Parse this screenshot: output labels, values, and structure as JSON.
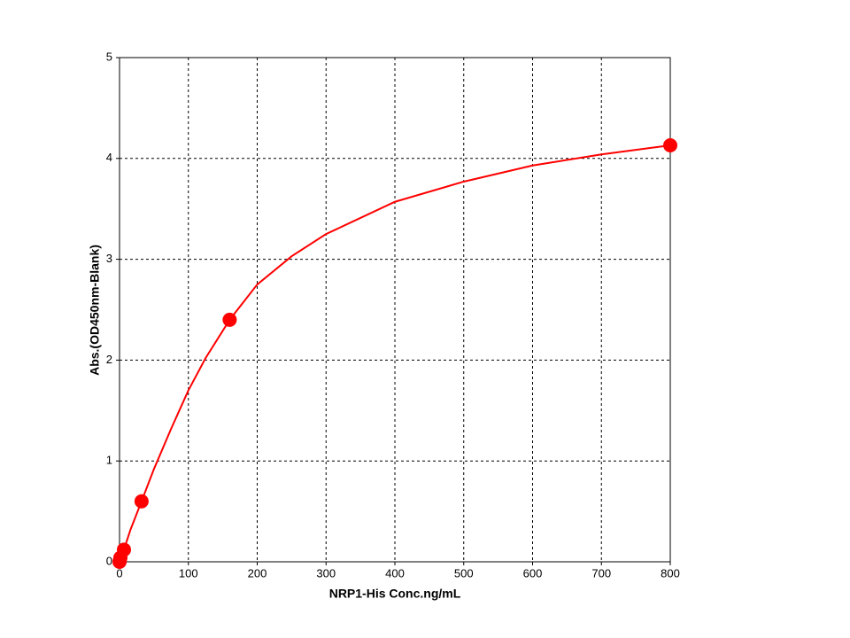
{
  "chart_data": {
    "type": "scatter",
    "x_label": "NRP1-His Conc.ng/mL",
    "y_label": "Abs.(OD450nm-Blank)",
    "xlim": [
      0,
      800
    ],
    "ylim": [
      0,
      5
    ],
    "xticks": [
      0,
      100,
      200,
      300,
      400,
      500,
      600,
      700,
      800
    ],
    "yticks": [
      0,
      1,
      2,
      3,
      4,
      5
    ],
    "grid": true,
    "series": [
      {
        "style": "markers",
        "color": "#ff0000",
        "x": [
          0,
          0.256,
          1.28,
          6.4,
          32,
          160,
          800
        ],
        "values": [
          0,
          0.01,
          0.04,
          0.12,
          0.6,
          2.4,
          4.13
        ]
      },
      {
        "style": "line",
        "color": "#ff0000",
        "x": [
          0,
          6.4,
          16,
          32,
          50,
          75,
          100,
          125,
          160,
          200,
          250,
          300,
          400,
          500,
          600,
          700,
          800
        ],
        "values": [
          0,
          0.12,
          0.32,
          0.6,
          0.92,
          1.32,
          1.7,
          2.02,
          2.4,
          2.75,
          3.03,
          3.25,
          3.57,
          3.77,
          3.93,
          4.04,
          4.13
        ]
      }
    ]
  }
}
